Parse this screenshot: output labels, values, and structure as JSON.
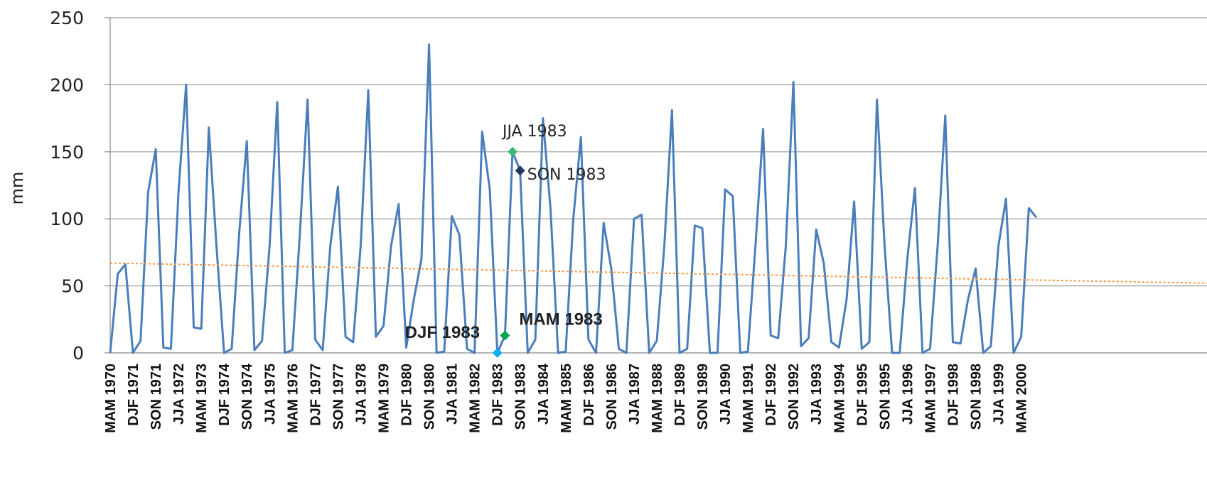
{
  "chart_data": {
    "type": "line",
    "ylabel": "mm",
    "ylim": [
      0,
      250
    ],
    "yticks": [
      0,
      50,
      100,
      150,
      200,
      250
    ],
    "grid": "horizontal",
    "x_tick_labels": [
      "MAM 1970",
      "DJF 1971",
      "SON 1971",
      "JJA 1972",
      "MAM 1973",
      "DJF 1974",
      "SON 1974",
      "JJA 1975",
      "MAM 1976",
      "DJF 1977",
      "SON 1977",
      "JJA 1978",
      "MAM 1979",
      "DJF 1980",
      "SON 1980",
      "JJA 1981",
      "MAM 1982",
      "DJF 1983",
      "SON 1983",
      "JJA 1984",
      "MAM 1985",
      "DJF 1986",
      "SON 1986",
      "JJA 1987",
      "MAM 1988",
      "DJF 1989",
      "SON 1989",
      "JJA 1990",
      "MAM 1991",
      "DJF 1992",
      "SON 1992",
      "JJA 1993",
      "MAM 1994",
      "DJF 1995",
      "SON 1995",
      "JJA 1996",
      "MAM 1997",
      "DJF 1998",
      "SON 1998",
      "JJA 1999",
      "MAM 2000"
    ],
    "series": [
      {
        "color": "#4a7ebb",
        "values": [
          0,
          59,
          66,
          0,
          9,
          120,
          152,
          4,
          3,
          120,
          200,
          19,
          18,
          168,
          80,
          0,
          3,
          90,
          158,
          2,
          9,
          80,
          187,
          0,
          2,
          90,
          189,
          10,
          2,
          80,
          124,
          12,
          8,
          80,
          196,
          12,
          20,
          80,
          111,
          4,
          40,
          70,
          230,
          0,
          1,
          102,
          88,
          3,
          0,
          165,
          122,
          0,
          13,
          150,
          136,
          0,
          10,
          175,
          108,
          0,
          1,
          100,
          161,
          10,
          0,
          97,
          63,
          3,
          0,
          100,
          103,
          0,
          9,
          80,
          181,
          0,
          3,
          95,
          93,
          0,
          0,
          122,
          117,
          0,
          1,
          80,
          167,
          13,
          11,
          80,
          202,
          5,
          11,
          92,
          67,
          8,
          4,
          40,
          113,
          3,
          8,
          189,
          80,
          0,
          0,
          70,
          123,
          0,
          3,
          80,
          177,
          8,
          7,
          40,
          63,
          0,
          5,
          80,
          115,
          0,
          12,
          108,
          101
        ]
      },
      {
        "type": "linear-trend",
        "color": "#f79646",
        "style": "dotted",
        "start": 67,
        "end": 52
      }
    ],
    "annotations": [
      {
        "label": "DJF 1983",
        "value": 0,
        "marker_color": "#00b0f0",
        "index": 51
      },
      {
        "label": "MAM 1983",
        "value": 13,
        "marker_color": "#00a651",
        "index": 52
      },
      {
        "label": "JJA 1983",
        "value": 150,
        "marker_color": "#3cb878",
        "index": 53
      },
      {
        "label": "SON 1983",
        "value": 136,
        "marker_color": "#1f3864",
        "index": 54
      }
    ]
  }
}
